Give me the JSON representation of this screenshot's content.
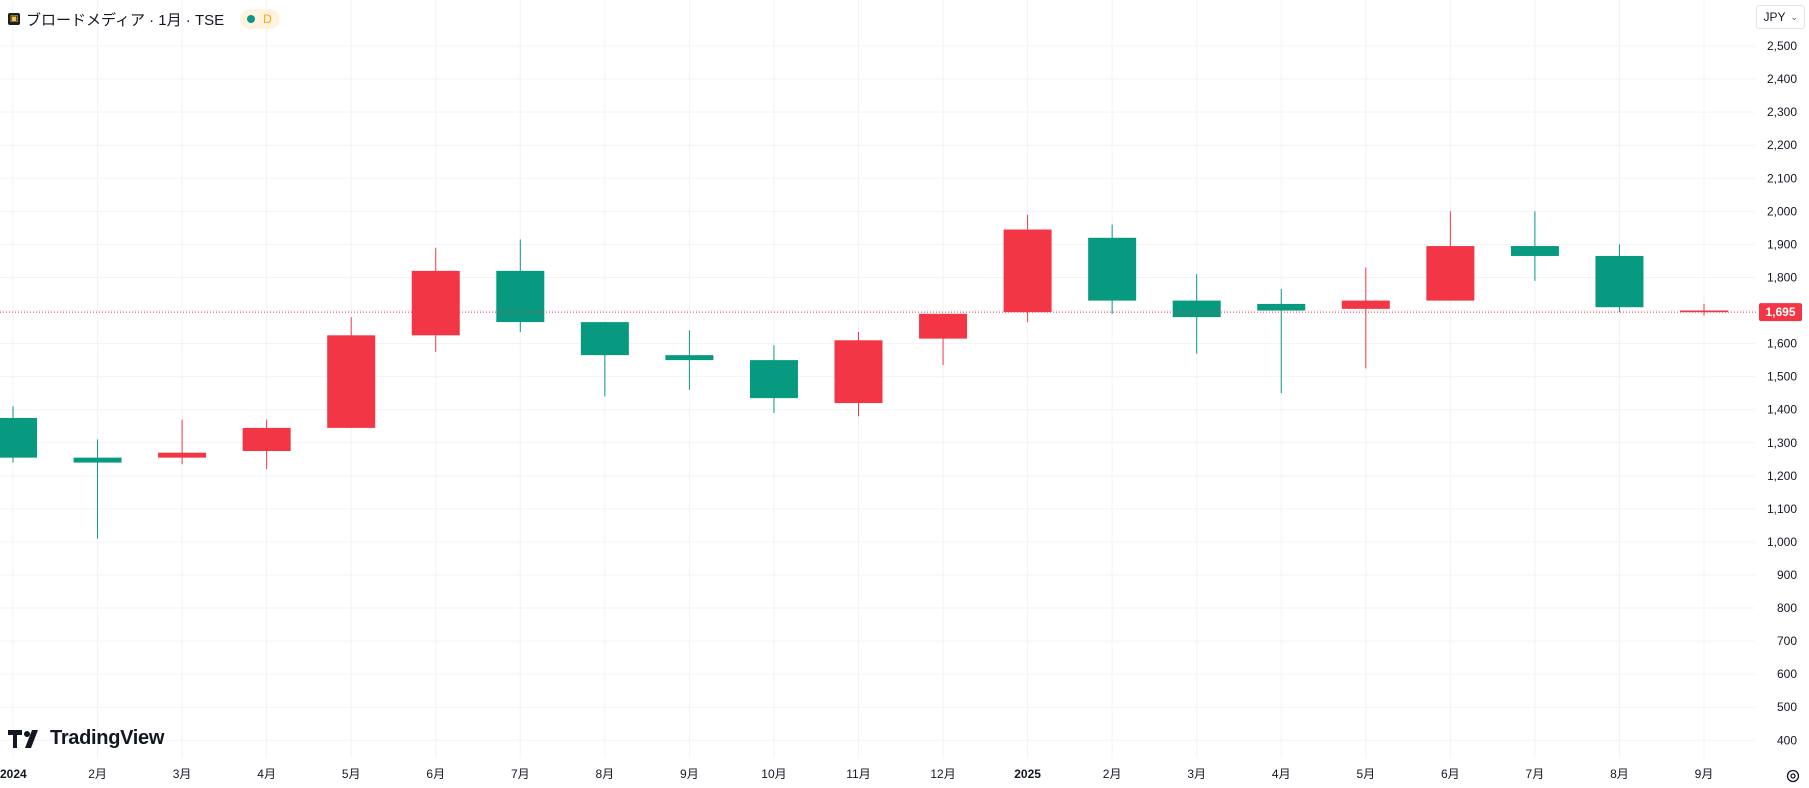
{
  "legend": {
    "symbol_icon": "broadmedia-logo-icon",
    "title": "ブロードメディア · 1月 · TSE",
    "status_letter": "D",
    "status_dot_color": "#089981"
  },
  "currency": {
    "label": "JPY",
    "icon": "chevron-down-icon"
  },
  "brand": {
    "label": "TradingView",
    "icon": "tradingview-logo-icon"
  },
  "settings_icon": "gear-icon",
  "chart_data": {
    "type": "candlestick",
    "y_axis": {
      "range": [
        380,
        2560
      ],
      "ticks": [
        400,
        500,
        600,
        700,
        800,
        900,
        1000,
        1100,
        1200,
        1300,
        1400,
        1500,
        1600,
        1700,
        1800,
        1900,
        2000,
        2100,
        2200,
        2300,
        2400,
        2500
      ],
      "tick_labels": [
        "400",
        "500",
        "600",
        "700",
        "800",
        "900",
        "1,000",
        "1,100",
        "1,200",
        "1,300",
        "1,400",
        "1,500",
        "1,600",
        "1,700",
        "1,800",
        "1,900",
        "2,000",
        "2,100",
        "2,200",
        "2,300",
        "2,400",
        "2,500"
      ],
      "position": "right"
    },
    "x_labels": [
      "2024",
      "2月",
      "3月",
      "4月",
      "5月",
      "6月",
      "7月",
      "8月",
      "9月",
      "10月",
      "11月",
      "12月",
      "2025",
      "2月",
      "3月",
      "4月",
      "5月",
      "6月",
      "7月",
      "8月",
      "9月"
    ],
    "x_label_bold": [
      true,
      false,
      false,
      false,
      false,
      false,
      false,
      false,
      false,
      false,
      false,
      false,
      true,
      false,
      false,
      false,
      false,
      false,
      false,
      false,
      false
    ],
    "candles": [
      {
        "open": 1255,
        "high": 1410,
        "low": 1240,
        "close": 1375
      },
      {
        "open": 1240,
        "high": 1310,
        "low": 1010,
        "close": 1255
      },
      {
        "open": 1270,
        "high": 1370,
        "low": 1235,
        "close": 1255
      },
      {
        "open": 1345,
        "high": 1370,
        "low": 1220,
        "close": 1275
      },
      {
        "open": 1625,
        "high": 1680,
        "low": 1345,
        "close": 1345
      },
      {
        "open": 1820,
        "high": 1890,
        "low": 1575,
        "close": 1625
      },
      {
        "open": 1665,
        "high": 1915,
        "low": 1635,
        "close": 1820
      },
      {
        "open": 1565,
        "high": 1665,
        "low": 1440,
        "close": 1665
      },
      {
        "open": 1550,
        "high": 1640,
        "low": 1460,
        "close": 1565
      },
      {
        "open": 1435,
        "high": 1595,
        "low": 1390,
        "close": 1550
      },
      {
        "open": 1610,
        "high": 1635,
        "low": 1380,
        "close": 1420
      },
      {
        "open": 1690,
        "high": 1690,
        "low": 1535,
        "close": 1615
      },
      {
        "open": 1945,
        "high": 1990,
        "low": 1665,
        "close": 1695
      },
      {
        "open": 1730,
        "high": 1960,
        "low": 1690,
        "close": 1920
      },
      {
        "open": 1680,
        "high": 1810,
        "low": 1570,
        "close": 1730
      },
      {
        "open": 1700,
        "high": 1765,
        "low": 1450,
        "close": 1720
      },
      {
        "open": 1730,
        "high": 1830,
        "low": 1525,
        "close": 1705
      },
      {
        "open": 1895,
        "high": 2000,
        "low": 1730,
        "close": 1730
      },
      {
        "open": 1865,
        "high": 2000,
        "low": 1790,
        "close": 1895
      },
      {
        "open": 1710,
        "high": 1900,
        "low": 1695,
        "close": 1865
      },
      {
        "open": 1700,
        "high": 1720,
        "low": 1685,
        "close": 1695
      }
    ],
    "last_price": 1695,
    "last_price_label": "1,695",
    "colors": {
      "up": "#089981",
      "down": "#f23645",
      "grid": "#f0f3fa",
      "axis_text": "#131722",
      "last_price_line": "#f23645"
    },
    "grid": true
  }
}
